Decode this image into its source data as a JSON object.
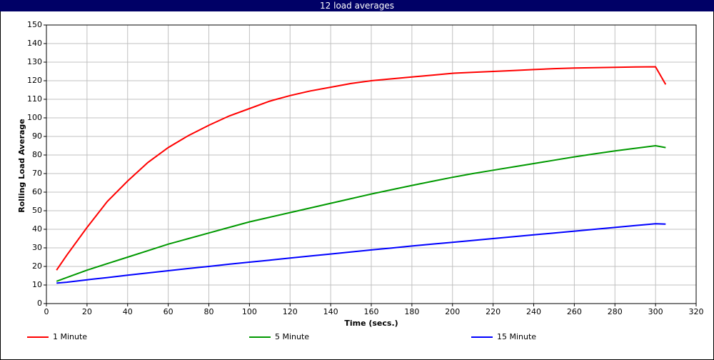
{
  "chart_data": {
    "type": "line",
    "title": "12 load averages",
    "xlabel": "Time (secs.)",
    "ylabel": "Rolling Load Average",
    "x": [
      5,
      10,
      20,
      30,
      40,
      50,
      60,
      70,
      80,
      90,
      100,
      110,
      120,
      130,
      140,
      150,
      160,
      170,
      180,
      190,
      200,
      210,
      220,
      230,
      240,
      250,
      260,
      270,
      280,
      290,
      300,
      305
    ],
    "series": [
      {
        "name": "1 Minute",
        "color": "#ff0000",
        "values": [
          18,
          26,
          41,
          55,
          66,
          76,
          84,
          90.5,
          96,
          101,
          105,
          109,
          112,
          114.5,
          116.5,
          118.5,
          120,
          121,
          122,
          123,
          124,
          124.5,
          125,
          125.5,
          126,
          126.5,
          126.8,
          127,
          127.2,
          127.4,
          127.5,
          118
        ]
      },
      {
        "name": "5 Minute",
        "color": "#009900",
        "values": [
          12,
          14,
          18,
          21.5,
          25,
          28.5,
          32,
          35,
          38,
          41,
          44,
          46.5,
          49,
          51.5,
          54,
          56.5,
          59,
          61.3,
          63.6,
          65.8,
          68,
          70,
          71.8,
          73.6,
          75.4,
          77.2,
          79,
          80.6,
          82.2,
          83.6,
          85,
          84
        ]
      },
      {
        "name": "15 Minute",
        "color": "#0000ff",
        "values": [
          11,
          11.5,
          12.8,
          14,
          15.3,
          16.5,
          17.7,
          18.9,
          20,
          21.2,
          22.3,
          23.4,
          24.5,
          25.6,
          26.7,
          27.8,
          28.9,
          29.9,
          31,
          32,
          33,
          34,
          35,
          36,
          37,
          38,
          39,
          40,
          41,
          42,
          43,
          42.8
        ]
      }
    ],
    "xlim": [
      0,
      320
    ],
    "xticks": [
      0,
      20,
      40,
      60,
      80,
      100,
      120,
      140,
      160,
      180,
      200,
      220,
      240,
      260,
      280,
      300,
      320
    ],
    "ylim": [
      0,
      150
    ],
    "yticks": [
      0,
      10,
      20,
      30,
      40,
      50,
      60,
      70,
      80,
      90,
      100,
      110,
      120,
      130,
      140,
      150
    ],
    "grid": true,
    "legend": "bottom"
  }
}
